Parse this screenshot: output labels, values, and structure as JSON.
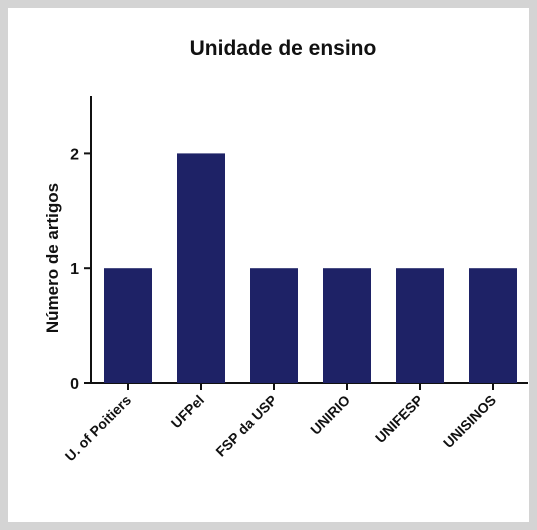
{
  "chart_data": {
    "type": "bar",
    "title": "Unidade de ensino",
    "xlabel": "",
    "ylabel": "Número de artigos",
    "categories": [
      "U. of Poitiers",
      "UFPel",
      "FSP da USP",
      "UNIRIO",
      "UNIFESP",
      "UNISINOS"
    ],
    "values": [
      1,
      2,
      1,
      1,
      1,
      1
    ],
    "ylim": [
      0,
      2.5
    ],
    "yticks": [
      "0",
      "1",
      "2"
    ],
    "grid": false,
    "bar_color": "#1e2266"
  }
}
